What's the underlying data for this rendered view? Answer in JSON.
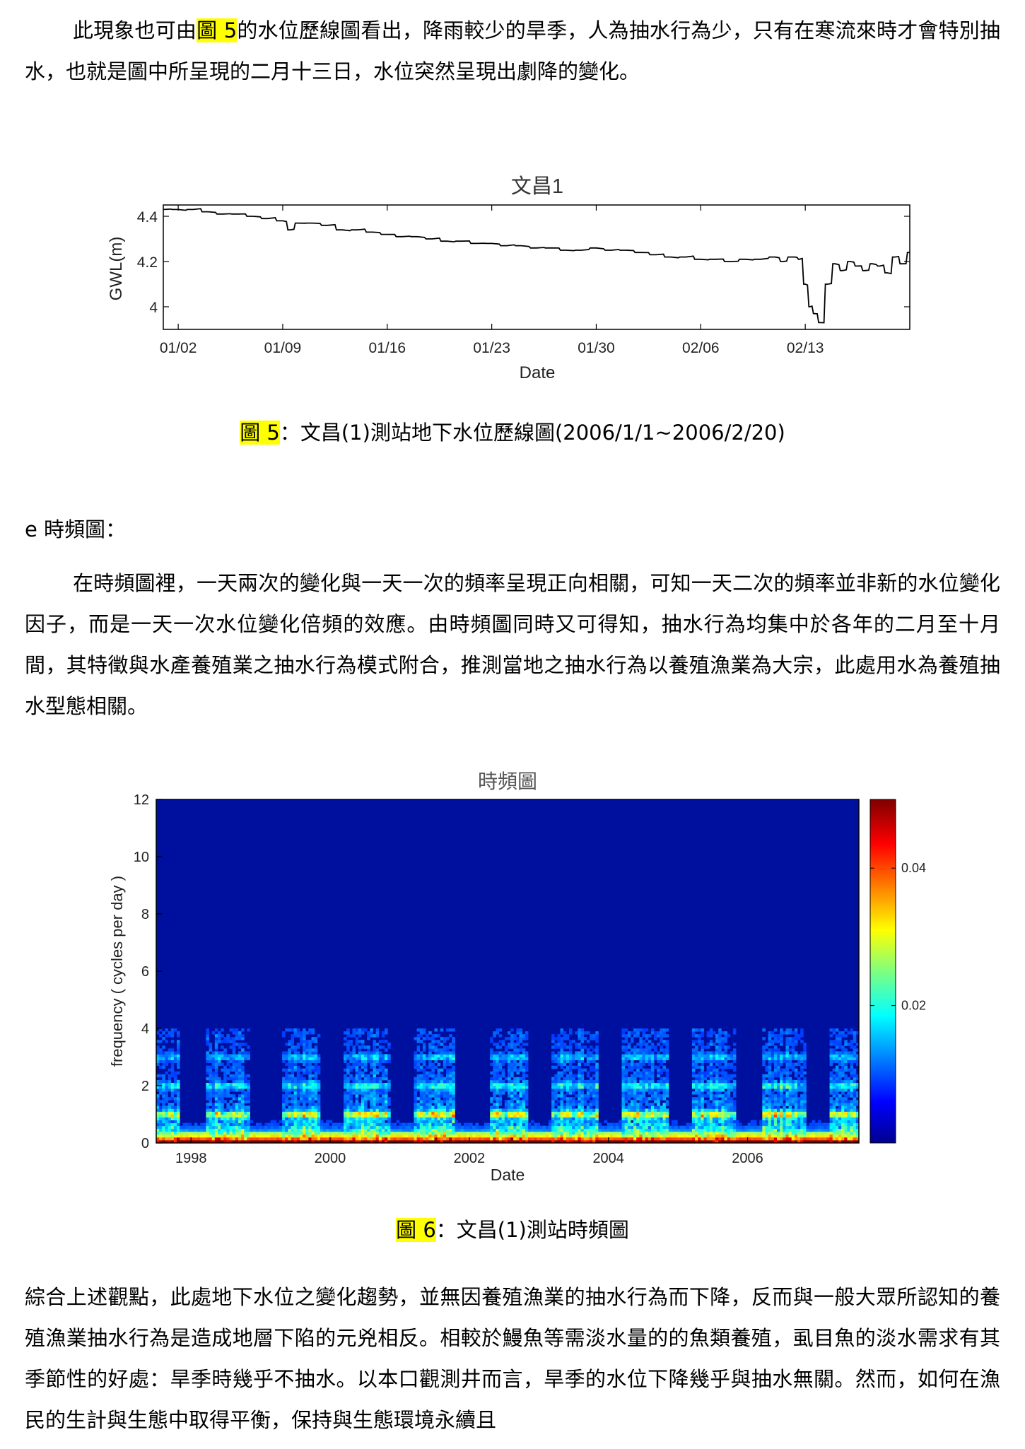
{
  "paragraph1": {
    "before_ref": "此現象也可由",
    "ref": "圖 5",
    "after_ref": "的水位歷線圖看出，降雨較少的旱季，人為抽水行為少，只有在寒流來時才會特別抽水，也就是圖中所呈現的二月十三日，水位突然呈現出劇降的變化。"
  },
  "figure5": {
    "caption_ref": "圖 5",
    "caption_text": "：文昌(1)測站地下水位歷線圖(2006/1/1~2006/2/20)"
  },
  "section_e": {
    "heading": "e 時頻圖："
  },
  "paragraph2": {
    "text": "在時頻圖裡，一天兩次的變化與一天一次的頻率呈現正向相關，可知一天二次的頻率並非新的水位變化因子，而是一天一次水位變化倍頻的效應。由時頻圖同時又可得知，抽水行為均集中於各年的二月至十月間，其特徵與水產養殖業之抽水行為模式附合，推測當地之抽水行為以養殖漁業為大宗，此處用水為養殖抽水型態相關。"
  },
  "figure6": {
    "caption_ref": "圖 6",
    "caption_text": "：文昌(1)測站時頻圖"
  },
  "paragraph3": {
    "text": "綜合上述觀點，此處地下水位之變化趨勢，並無因養殖漁業的抽水行為而下降，反而與一般大眾所認知的養殖漁業抽水行為是造成地層下陷的元兇相反。相較於鰻魚等需淡水量的的魚類養殖，虱目魚的淡水需求有其季節性的好處：旱季時幾乎不抽水。以本口觀測井而言，旱季的水位下降幾乎與抽水無關。然而，如何在漁民的生計與生態中取得平衡，保持與生態環境永續且"
  },
  "chart_data": [
    {
      "type": "line",
      "title": "文昌1",
      "xlabel": "Date",
      "ylabel": "GWL(m)",
      "x_tick_labels": [
        "01/02",
        "01/09",
        "01/16",
        "01/23",
        "01/30",
        "02/06",
        "02/13"
      ],
      "x_tick_days": [
        1,
        8,
        15,
        22,
        29,
        36,
        43
      ],
      "y_ticks": [
        4,
        4.2,
        4.4
      ],
      "xlim": [
        0,
        50
      ],
      "ylim": [
        3.9,
        4.45
      ],
      "grid": false,
      "line_color": "#000000",
      "series": [
        {
          "x": [
            0,
            1,
            2,
            3,
            4,
            5,
            6,
            7,
            8,
            8.5,
            9,
            10,
            11,
            12,
            13,
            14,
            15,
            16,
            17,
            18,
            19,
            20,
            21,
            22,
            23,
            24,
            25,
            26,
            27,
            28,
            29,
            30,
            31,
            32,
            33,
            34,
            35,
            36,
            37,
            38,
            39,
            40,
            41,
            41.5,
            42,
            42.3,
            42.6,
            43,
            43.3,
            43.6,
            44,
            44.5,
            45,
            45.5,
            46,
            46.5,
            47,
            47.5,
            48,
            48.5,
            49,
            49.5,
            50
          ],
          "values": [
            4.43,
            4.43,
            4.43,
            4.42,
            4.41,
            4.41,
            4.4,
            4.39,
            4.38,
            4.34,
            4.37,
            4.37,
            4.36,
            4.34,
            4.34,
            4.33,
            4.32,
            4.31,
            4.31,
            4.3,
            4.29,
            4.29,
            4.28,
            4.28,
            4.27,
            4.27,
            4.26,
            4.26,
            4.25,
            4.25,
            4.26,
            4.25,
            4.25,
            4.24,
            4.23,
            4.22,
            4.22,
            4.21,
            4.21,
            4.2,
            4.21,
            4.21,
            4.22,
            4.2,
            4.22,
            4.22,
            4.21,
            4.1,
            4.0,
            3.97,
            3.93,
            4.1,
            4.19,
            4.16,
            4.2,
            4.18,
            4.16,
            4.19,
            4.18,
            4.15,
            4.22,
            4.19,
            4.24
          ]
        }
      ]
    },
    {
      "type": "heatmap",
      "title": "時頻圖",
      "xlabel": "Date",
      "ylabel": "frequency ( cycles per day )",
      "x_ticks": [
        1998,
        2000,
        2002,
        2004,
        2006
      ],
      "xlim": [
        1997.5,
        2007.6
      ],
      "y_ticks": [
        0,
        2,
        4,
        6,
        8,
        10,
        12
      ],
      "ylim": [
        0,
        12
      ],
      "colorbar_ticks": [
        0.02,
        0.04
      ],
      "colorbar_range": [
        0,
        0.05
      ],
      "colormap": "jet",
      "low_activity_periods": [
        [
          1997.85,
          1998.2
        ],
        [
          1998.85,
          1999.3
        ],
        [
          1999.85,
          2000.2
        ],
        [
          2000.85,
          2001.2
        ],
        [
          2001.8,
          2002.3
        ],
        [
          2002.85,
          2003.2
        ],
        [
          2003.85,
          2004.2
        ],
        [
          2004.85,
          2005.2
        ],
        [
          2005.85,
          2006.2
        ],
        [
          2006.85,
          2007.2
        ]
      ],
      "harmonic_bands_cpd": [
        1,
        2,
        3
      ]
    }
  ]
}
